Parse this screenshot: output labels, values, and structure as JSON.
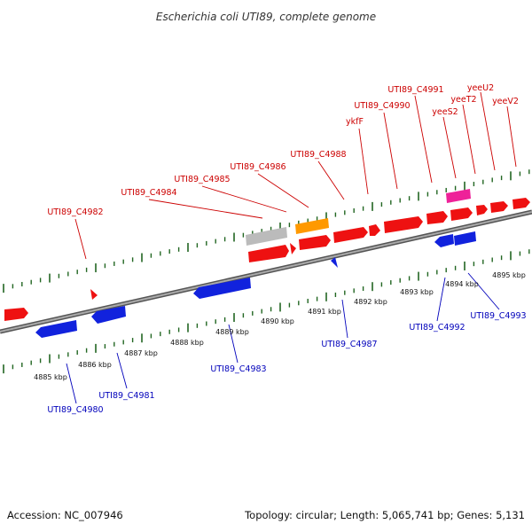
{
  "title": "Escherichia coli UTI89, complete genome",
  "accession": "Accession: NC_007946",
  "topology": "Topology: circular; Length: 5,065,741 bp; Genes: 5,131",
  "colors": {
    "forward_gene": "#ee1111",
    "reverse_gene": "#1122dd",
    "rna_gray": "#bbbbbb",
    "rna_orange": "#ff9900",
    "rna_pink": "#ee2299",
    "tick": "#226622",
    "backbone": "#888888",
    "forward_label": "#cc0000",
    "reverse_label": "#0000bb"
  },
  "kbp_ticks": [
    "4885 kbp",
    "4886 kbp",
    "4887 kbp",
    "4888 kbp",
    "4889 kbp",
    "4890 kbp",
    "4891 kbp",
    "4892 kbp",
    "4893 kbp",
    "4894 kbp",
    "4895 kbp"
  ],
  "forward_labels": [
    "UTI89_C4982",
    "UTI89_C4984",
    "UTI89_C4985",
    "UTI89_C4986",
    "UTI89_C4988",
    "ykfF",
    "UTI89_C4990",
    "UTI89_C4991",
    "yeeS2",
    "yeeT2",
    "yeeU2",
    "yeeV2"
  ],
  "reverse_labels": [
    "UTI89_C4980",
    "UTI89_C4981",
    "UTI89_C4983",
    "UTI89_C4987",
    "UTI89_C4992",
    "UTI89_C4993"
  ]
}
